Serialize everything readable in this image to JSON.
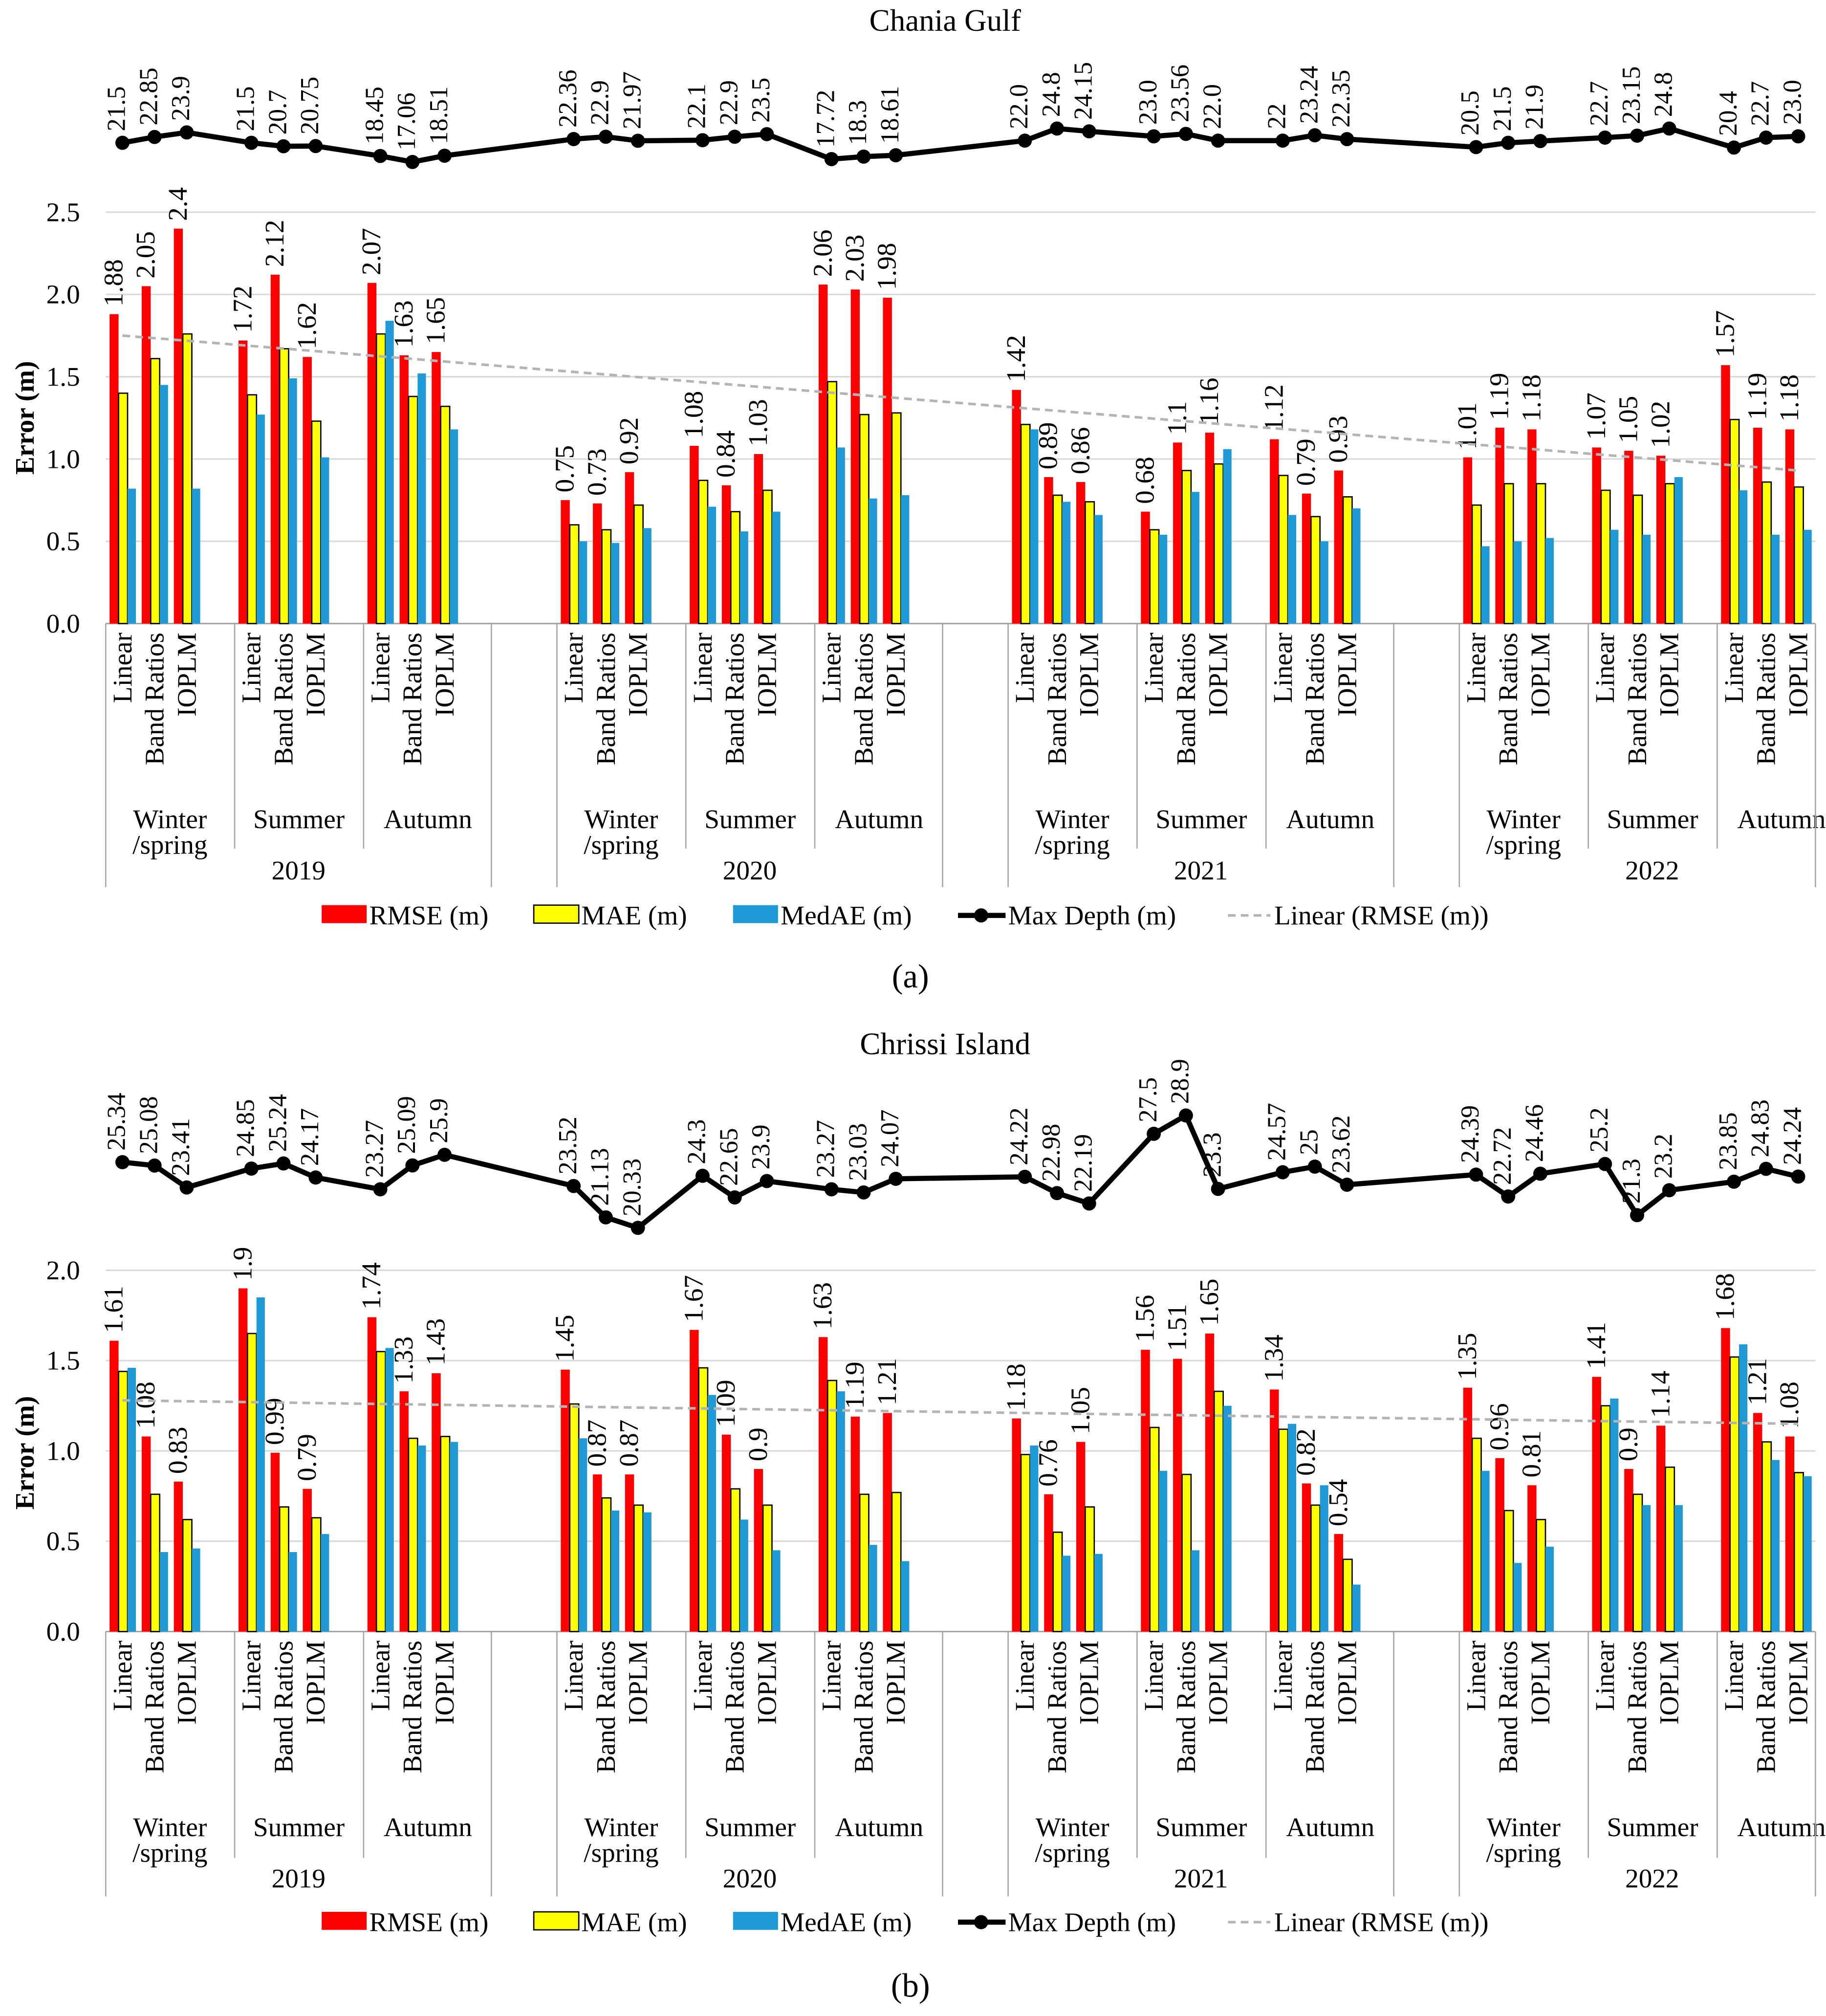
{
  "legend": {
    "rmse": "RMSE (m)",
    "mae": "MAE (m)",
    "medae": "MedAE (m)",
    "max_depth": "Max Depth (m)",
    "trend": "Linear (RMSE (m))"
  },
  "colors": {
    "rmse": "#ff0000",
    "mae": "#ffff00",
    "medae": "#1f9ad6",
    "max_depth": "#000000",
    "trend": "#b4b4b4",
    "grid": "#d9d9d9"
  },
  "chart_data": [
    {
      "type": "bar",
      "title": "Chania Gulf",
      "panel_label": "(a)",
      "ylabel": "Error (m)",
      "ylim": [
        0,
        2.5
      ],
      "ytick_labels": [
        "0.0",
        "0.5",
        "1.0",
        "1.5",
        "2.0",
        "2.5"
      ],
      "grid": true,
      "legend_position": "bottom",
      "years": [
        "2019",
        "2020",
        "2021",
        "2022"
      ],
      "seasons": [
        [
          "Winter",
          "/spring"
        ],
        [
          "Summer"
        ],
        [
          "Autumn"
        ]
      ],
      "methods": [
        "Linear",
        "Band Ratios",
        "IOPLM"
      ],
      "series": [
        {
          "name": "RMSE (m)",
          "values": [
            1.88,
            2.05,
            2.4,
            1.72,
            2.12,
            1.62,
            2.07,
            1.63,
            1.65,
            0.75,
            0.73,
            0.92,
            1.08,
            0.84,
            1.03,
            2.06,
            2.03,
            1.98,
            1.42,
            0.89,
            0.86,
            0.68,
            1.1,
            1.16,
            1.12,
            0.79,
            0.93,
            1.01,
            1.19,
            1.18,
            1.07,
            1.05,
            1.02,
            1.57,
            1.19,
            1.18
          ]
        },
        {
          "name": "MAE (m)",
          "values": [
            1.4,
            1.61,
            1.76,
            1.39,
            1.67,
            1.23,
            1.76,
            1.38,
            1.32,
            0.6,
            0.57,
            0.72,
            0.87,
            0.68,
            0.81,
            1.47,
            1.27,
            1.28,
            1.21,
            0.78,
            0.74,
            0.57,
            0.93,
            0.97,
            0.9,
            0.65,
            0.77,
            0.72,
            0.85,
            0.85,
            0.81,
            0.78,
            0.85,
            1.24,
            0.86,
            0.83
          ]
        },
        {
          "name": "MedAE (m)",
          "values": [
            0.82,
            1.45,
            0.82,
            1.27,
            1.49,
            1.01,
            1.84,
            1.52,
            1.18,
            0.5,
            0.49,
            0.58,
            0.71,
            0.56,
            0.68,
            1.07,
            0.76,
            0.78,
            1.18,
            0.74,
            0.66,
            0.54,
            0.8,
            1.06,
            0.66,
            0.5,
            0.7,
            0.47,
            0.5,
            0.52,
            0.57,
            0.54,
            0.89,
            0.81,
            0.54,
            0.57
          ]
        }
      ],
      "rmse_labels": [
        "1.88",
        "2.05",
        "2.4",
        "1.72",
        "2.12",
        "1.62",
        "2.07",
        "1.63",
        "1.65",
        "0.75",
        "0.73",
        "0.92",
        "1.08",
        "0.84",
        "1.03",
        "2.06",
        "2.03",
        "1.98",
        "1.42",
        "0.89",
        "0.86",
        "0.68",
        "1.1",
        "1.16",
        "1.12",
        "0.79",
        "0.93",
        "1.01",
        "1.19",
        "1.18",
        "1.07",
        "1.05",
        "1.02",
        "1.57",
        "1.19",
        "1.18"
      ],
      "max_depth": {
        "name": "Max Depth (m)",
        "values": [
          21.5,
          22.85,
          23.9,
          21.5,
          20.7,
          20.75,
          18.45,
          17.06,
          18.51,
          22.36,
          22.9,
          21.97,
          22.1,
          22.9,
          23.5,
          17.72,
          18.3,
          18.61,
          22.0,
          24.8,
          24.15,
          23.0,
          23.56,
          22.0,
          22,
          23.24,
          22.35,
          20.5,
          21.5,
          21.9,
          22.7,
          23.15,
          24.8,
          20.4,
          22.7,
          23.0
        ],
        "labels": [
          "21.5",
          "22.85",
          "23.9",
          "21.5",
          "20.7",
          "20.75",
          "18.45",
          "17.06",
          "18.51",
          "22.36",
          "22.9",
          "21.97",
          "22.1",
          "22.9",
          "23.5",
          "17.72",
          "18.3",
          "18.61",
          "22.0",
          "24.8",
          "24.15",
          "23.0",
          "23.56",
          "22.0",
          "22",
          "23.24",
          "22.35",
          "20.5",
          "21.5",
          "21.9",
          "22.7",
          "23.15",
          "24.8",
          "20.4",
          "22.7",
          "23.0"
        ]
      },
      "trend": {
        "name": "Linear (RMSE (m))",
        "start": 1.75,
        "end": 0.93
      }
    },
    {
      "type": "bar",
      "title": "Chrissi Island",
      "panel_label": "(b)",
      "ylabel": "Error (m)",
      "ylim": [
        0,
        2.0
      ],
      "ytick_labels": [
        "0.0",
        "0.5",
        "1.0",
        "1.5",
        "2.0"
      ],
      "grid": true,
      "legend_position": "bottom",
      "years": [
        "2019",
        "2020",
        "2021",
        "2022"
      ],
      "seasons": [
        [
          "Winter",
          "/spring"
        ],
        [
          "Summer"
        ],
        [
          "Autumn"
        ]
      ],
      "methods": [
        "Linear",
        "Band Ratios",
        "IOPLM"
      ],
      "series": [
        {
          "name": "RMSE (m)",
          "values": [
            1.61,
            1.08,
            0.83,
            1.9,
            0.99,
            0.79,
            1.74,
            1.33,
            1.43,
            1.45,
            0.87,
            0.87,
            1.67,
            1.09,
            0.9,
            1.63,
            1.19,
            1.21,
            1.18,
            0.76,
            1.05,
            1.56,
            1.51,
            1.65,
            1.34,
            0.82,
            0.54,
            1.35,
            0.96,
            0.81,
            1.41,
            0.9,
            1.14,
            1.68,
            1.21,
            1.08
          ]
        },
        {
          "name": "MAE (m)",
          "values": [
            1.44,
            0.76,
            0.62,
            1.65,
            0.69,
            0.63,
            1.55,
            1.07,
            1.08,
            1.26,
            0.74,
            0.7,
            1.46,
            0.79,
            0.7,
            1.39,
            0.76,
            0.77,
            0.98,
            0.55,
            0.69,
            1.13,
            0.87,
            1.33,
            1.12,
            0.7,
            0.4,
            1.07,
            0.67,
            0.62,
            1.25,
            0.76,
            0.91,
            1.52,
            1.05,
            0.88
          ]
        },
        {
          "name": "MedAE (m)",
          "values": [
            1.46,
            0.44,
            0.46,
            1.85,
            0.44,
            0.54,
            1.57,
            1.03,
            1.05,
            1.07,
            0.67,
            0.66,
            1.31,
            0.62,
            0.45,
            1.33,
            0.48,
            0.39,
            1.03,
            0.42,
            0.43,
            0.89,
            0.45,
            1.25,
            1.15,
            0.81,
            0.26,
            0.89,
            0.38,
            0.47,
            1.29,
            0.7,
            0.7,
            1.59,
            0.95,
            0.86
          ]
        }
      ],
      "rmse_labels": [
        "1.61",
        "1.08",
        "0.83",
        "1.9",
        "0.99",
        "0.79",
        "1.74",
        "1.33",
        "1.43",
        "1.45",
        "0.87",
        "0.87",
        "1.67",
        "1.09",
        "0.9",
        "1.63",
        "1.19",
        "1.21",
        "1.18",
        "0.76",
        "1.05",
        "1.56",
        "1.51",
        "1.65",
        "1.34",
        "0.82",
        "0.54",
        "1.35",
        "0.96",
        "0.81",
        "1.41",
        "0.9",
        "1.14",
        "1.68",
        "1.21",
        "1.08"
      ],
      "max_depth": {
        "name": "Max Depth (m)",
        "values": [
          25.34,
          25.08,
          23.41,
          24.85,
          25.24,
          24.17,
          23.27,
          25.09,
          25.9,
          23.52,
          21.13,
          20.33,
          24.3,
          22.65,
          23.9,
          23.27,
          23.03,
          24.07,
          24.22,
          22.98,
          22.19,
          27.5,
          28.9,
          23.3,
          24.57,
          25,
          23.62,
          24.39,
          22.72,
          24.46,
          25.2,
          21.3,
          23.2,
          23.85,
          24.83,
          24.24
        ],
        "labels": [
          "25.34",
          "25.08",
          "23.41",
          "24.85",
          "25.24",
          "24.17",
          "23.27",
          "25.09",
          "25.9",
          "23.52",
          "21.13",
          "20.33",
          "24.3",
          "22.65",
          "23.9",
          "23.27",
          "23.03",
          "24.07",
          "24.22",
          "22.98",
          "22.19",
          "27.5",
          "28.9",
          "23.3",
          "24.57",
          "25",
          "23.62",
          "24.39",
          "22.72",
          "24.46",
          "25.2",
          "21.3",
          "23.2",
          "23.85",
          "24.83",
          "24.24"
        ]
      },
      "trend": {
        "name": "Linear (RMSE (m))",
        "start": 1.28,
        "end": 1.15
      }
    }
  ]
}
